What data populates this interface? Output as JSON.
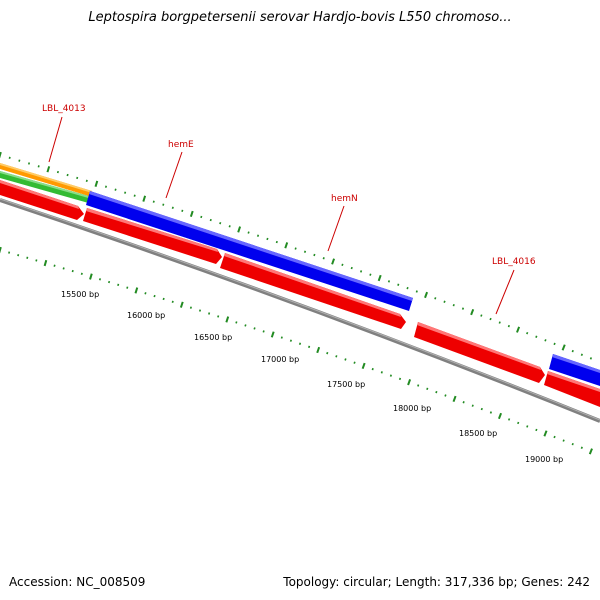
{
  "map": {
    "title": "Leptospira borgpetersenii serovar Hardjo-bovis L550 chromoso...",
    "accession": "Accession: NC_008509",
    "summary": "Topology: circular; Length: 317,336 bp; Genes: 242"
  },
  "colors": {
    "forward_cds": "#0000ee",
    "reverse_cds": "#ee0000",
    "orange_feature": "#ff9900",
    "green_feature": "#33bb33",
    "backbone": "#808080",
    "ticks": "#228b22",
    "feature_label": "#cc0000"
  },
  "feature_labels": [
    "LBL_4013",
    "hemE",
    "hemN",
    "LBL_4016"
  ],
  "scale_labels": [
    "15500 bp",
    "16000 bp",
    "16500 bp",
    "17000 bp",
    "17500 bp",
    "18000 bp",
    "18500 bp",
    "19000 bp"
  ]
}
